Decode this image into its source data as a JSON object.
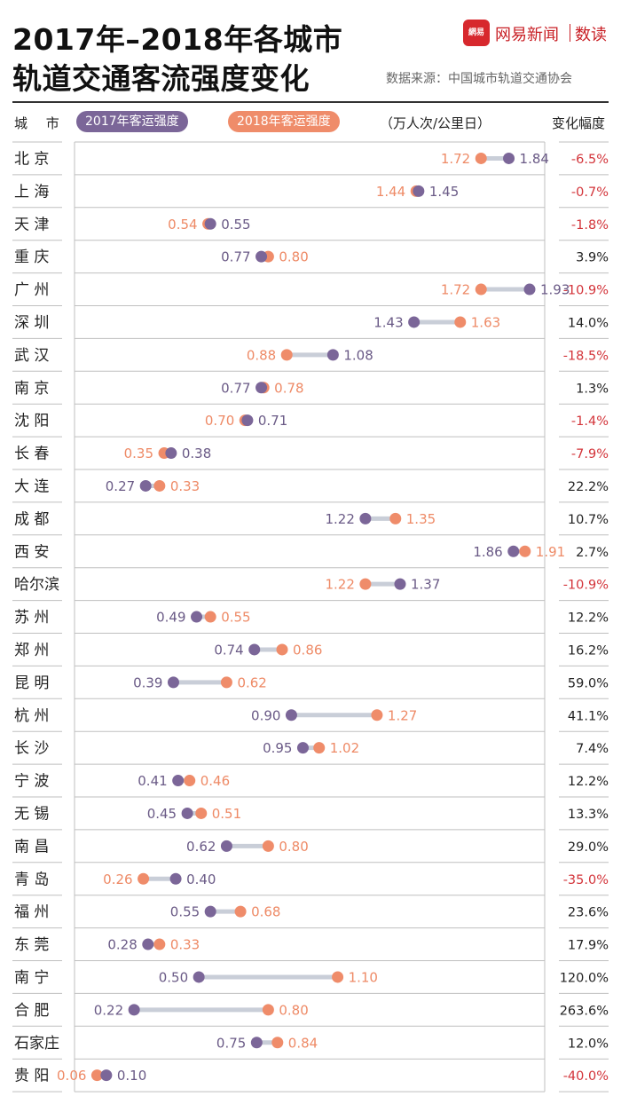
{
  "header": {
    "title_line1": "2017年–2018年各城市",
    "title_line2": "轨道交通客流强度变化",
    "brand_logo": "網易",
    "brand_name": "网易新闻",
    "brand_sub": "数读",
    "source": "数据来源：中国城市轨道交通协会"
  },
  "columns": {
    "city": "城 市",
    "legend_2017": "2017年客运强度",
    "legend_2018": "2018年客运强度",
    "unit": "（万人次/公里日）",
    "change": "变化幅度"
  },
  "colors": {
    "c2017": "#7b6698",
    "c2018": "#ef8c6a",
    "connector": "#c9ced8",
    "negative": "#d3343a",
    "grid": "#bfbfbf"
  },
  "chart_data": {
    "type": "dumbbell",
    "title": "2017年–2018年各城市轨道交通客流强度变化",
    "ylabel": "（万人次/公里日）",
    "xlim": [
      0,
      2.0
    ],
    "series": [
      {
        "name": "2017年客运强度",
        "key": "v2017"
      },
      {
        "name": "2018年客运强度",
        "key": "v2018"
      }
    ],
    "rows": [
      {
        "city": "北 京",
        "v2017": 1.84,
        "v2018": 1.72,
        "l2017": "1.84",
        "l2018": "1.72",
        "change": "-6.5%"
      },
      {
        "city": "上 海",
        "v2017": 1.45,
        "v2018": 1.44,
        "l2017": "1.45",
        "l2018": "1.44",
        "change": "-0.7%"
      },
      {
        "city": "天 津",
        "v2017": 0.55,
        "v2018": 0.54,
        "l2017": "0.55",
        "l2018": "0.54",
        "change": "-1.8%"
      },
      {
        "city": "重 庆",
        "v2017": 0.77,
        "v2018": 0.8,
        "l2017": "0.77",
        "l2018": "0.80",
        "change": "3.9%"
      },
      {
        "city": "广 州",
        "v2017": 1.93,
        "v2018": 1.72,
        "l2017": "1.93",
        "l2018": "1.72",
        "change": "-10.9%"
      },
      {
        "city": "深 圳",
        "v2017": 1.43,
        "v2018": 1.63,
        "l2017": "1.43",
        "l2018": "1.63",
        "change": "14.0%"
      },
      {
        "city": "武 汉",
        "v2017": 1.08,
        "v2018": 0.88,
        "l2017": "1.08",
        "l2018": "0.88",
        "change": "-18.5%"
      },
      {
        "city": "南 京",
        "v2017": 0.77,
        "v2018": 0.78,
        "l2017": "0.77",
        "l2018": "0.78",
        "change": "1.3%"
      },
      {
        "city": "沈 阳",
        "v2017": 0.71,
        "v2018": 0.7,
        "l2017": "0.71",
        "l2018": "0.70",
        "change": "-1.4%"
      },
      {
        "city": "长 春",
        "v2017": 0.38,
        "v2018": 0.35,
        "l2017": "0.38",
        "l2018": "0.35",
        "change": "-7.9%"
      },
      {
        "city": "大 连",
        "v2017": 0.27,
        "v2018": 0.33,
        "l2017": "0.27",
        "l2018": "0.33",
        "change": "22.2%"
      },
      {
        "city": "成 都",
        "v2017": 1.22,
        "v2018": 1.35,
        "l2017": "1.22",
        "l2018": "1.35",
        "change": "10.7%"
      },
      {
        "city": "西 安",
        "v2017": 1.86,
        "v2018": 1.91,
        "l2017": "1.86",
        "l2018": "1.91",
        "change": "2.7%"
      },
      {
        "city": "哈尔滨",
        "v2017": 1.37,
        "v2018": 1.22,
        "l2017": "1.37",
        "l2018": "1.22",
        "change": "-10.9%"
      },
      {
        "city": "苏 州",
        "v2017": 0.49,
        "v2018": 0.55,
        "l2017": "0.49",
        "l2018": "0.55",
        "change": "12.2%"
      },
      {
        "city": "郑 州",
        "v2017": 0.74,
        "v2018": 0.86,
        "l2017": "0.74",
        "l2018": "0.86",
        "change": "16.2%"
      },
      {
        "city": "昆 明",
        "v2017": 0.39,
        "v2018": 0.62,
        "l2017": "0.39",
        "l2018": "0.62",
        "change": "59.0%"
      },
      {
        "city": "杭 州",
        "v2017": 0.9,
        "v2018": 1.27,
        "l2017": "0.90",
        "l2018": "1.27",
        "change": "41.1%"
      },
      {
        "city": "长 沙",
        "v2017": 0.95,
        "v2018": 1.02,
        "l2017": "0.95",
        "l2018": "1.02",
        "change": "7.4%"
      },
      {
        "city": "宁 波",
        "v2017": 0.41,
        "v2018": 0.46,
        "l2017": "0.41",
        "l2018": "0.46",
        "change": "12.2%"
      },
      {
        "city": "无 锡",
        "v2017": 0.45,
        "v2018": 0.51,
        "l2017": "0.45",
        "l2018": "0.51",
        "change": "13.3%"
      },
      {
        "city": "南 昌",
        "v2017": 0.62,
        "v2018": 0.8,
        "l2017": "0.62",
        "l2018": "0.80",
        "change": "29.0%"
      },
      {
        "city": "青 岛",
        "v2017": 0.4,
        "v2018": 0.26,
        "l2017": "0.40",
        "l2018": "0.26",
        "change": "-35.0%"
      },
      {
        "city": "福 州",
        "v2017": 0.55,
        "v2018": 0.68,
        "l2017": "0.55",
        "l2018": "0.68",
        "change": "23.6%"
      },
      {
        "city": "东 莞",
        "v2017": 0.28,
        "v2018": 0.33,
        "l2017": "0.28",
        "l2018": "0.33",
        "change": "17.9%"
      },
      {
        "city": "南 宁",
        "v2017": 0.5,
        "v2018": 1.1,
        "l2017": "0.50",
        "l2018": "1.10",
        "change": "120.0%"
      },
      {
        "city": "合 肥",
        "v2017": 0.22,
        "v2018": 0.8,
        "l2017": "0.22",
        "l2018": "0.80",
        "change": "263.6%"
      },
      {
        "city": "石家庄",
        "v2017": 0.75,
        "v2018": 0.84,
        "l2017": "0.75",
        "l2018": "0.84",
        "change": "12.0%"
      },
      {
        "city": "贵 阳",
        "v2017": 0.1,
        "v2018": 0.06,
        "l2017": "0.10",
        "l2018": "0.06",
        "change": "-40.0%"
      }
    ]
  }
}
